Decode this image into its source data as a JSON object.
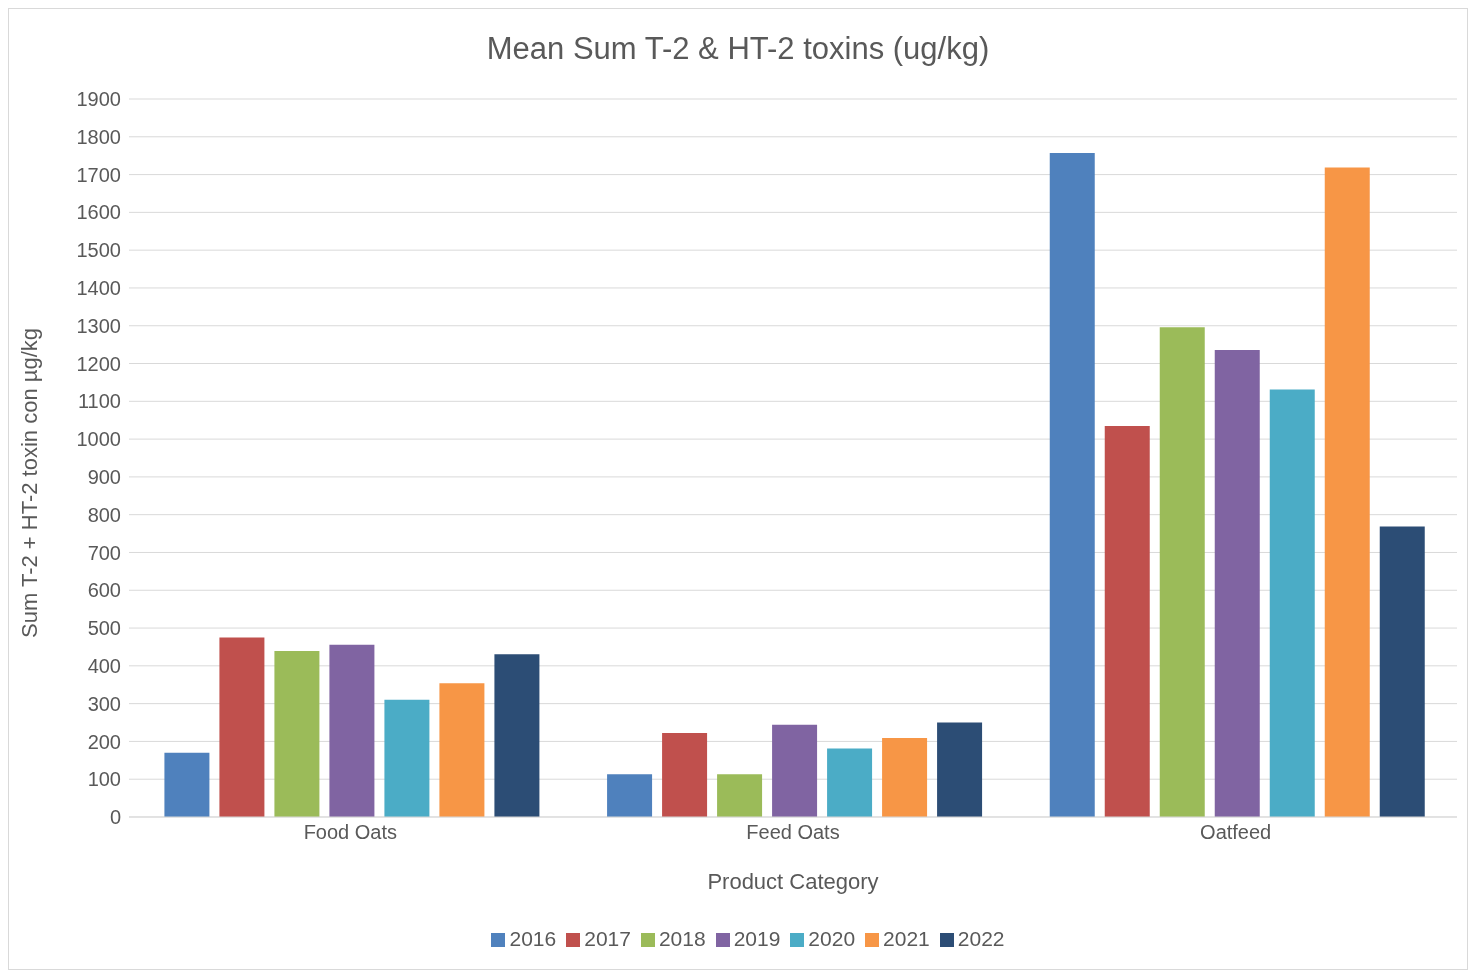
{
  "chart_data": {
    "type": "bar",
    "title": "Mean Sum T-2 & HT-2 toxins (ug/kg)",
    "xlabel": "Product Category",
    "ylabel": "Sum T-2 + HT-2 toxin con µg/kg",
    "categories": [
      "Food Oats",
      "Feed Oats",
      "Oatfeed"
    ],
    "series": [
      {
        "name": "2016",
        "color": "#4f81bd",
        "values": [
          170,
          113,
          1757
        ]
      },
      {
        "name": "2017",
        "color": "#c0504d",
        "values": [
          475,
          222,
          1035
        ]
      },
      {
        "name": "2018",
        "color": "#9bbb59",
        "values": [
          439,
          113,
          1296
        ]
      },
      {
        "name": "2019",
        "color": "#8064a2",
        "values": [
          456,
          244,
          1236
        ]
      },
      {
        "name": "2020",
        "color": "#4bacc6",
        "values": [
          310,
          181,
          1131
        ]
      },
      {
        "name": "2021",
        "color": "#f79646",
        "values": [
          354,
          209,
          1719
        ]
      },
      {
        "name": "2022",
        "color": "#2c4d75",
        "values": [
          431,
          250,
          769
        ]
      }
    ],
    "ylim": [
      0,
      1900
    ],
    "yticks": [
      0,
      100,
      200,
      300,
      400,
      500,
      600,
      700,
      800,
      900,
      1000,
      1100,
      1200,
      1300,
      1400,
      1500,
      1600,
      1700,
      1800,
      1900
    ],
    "grid": "y",
    "legend": "bottom"
  }
}
